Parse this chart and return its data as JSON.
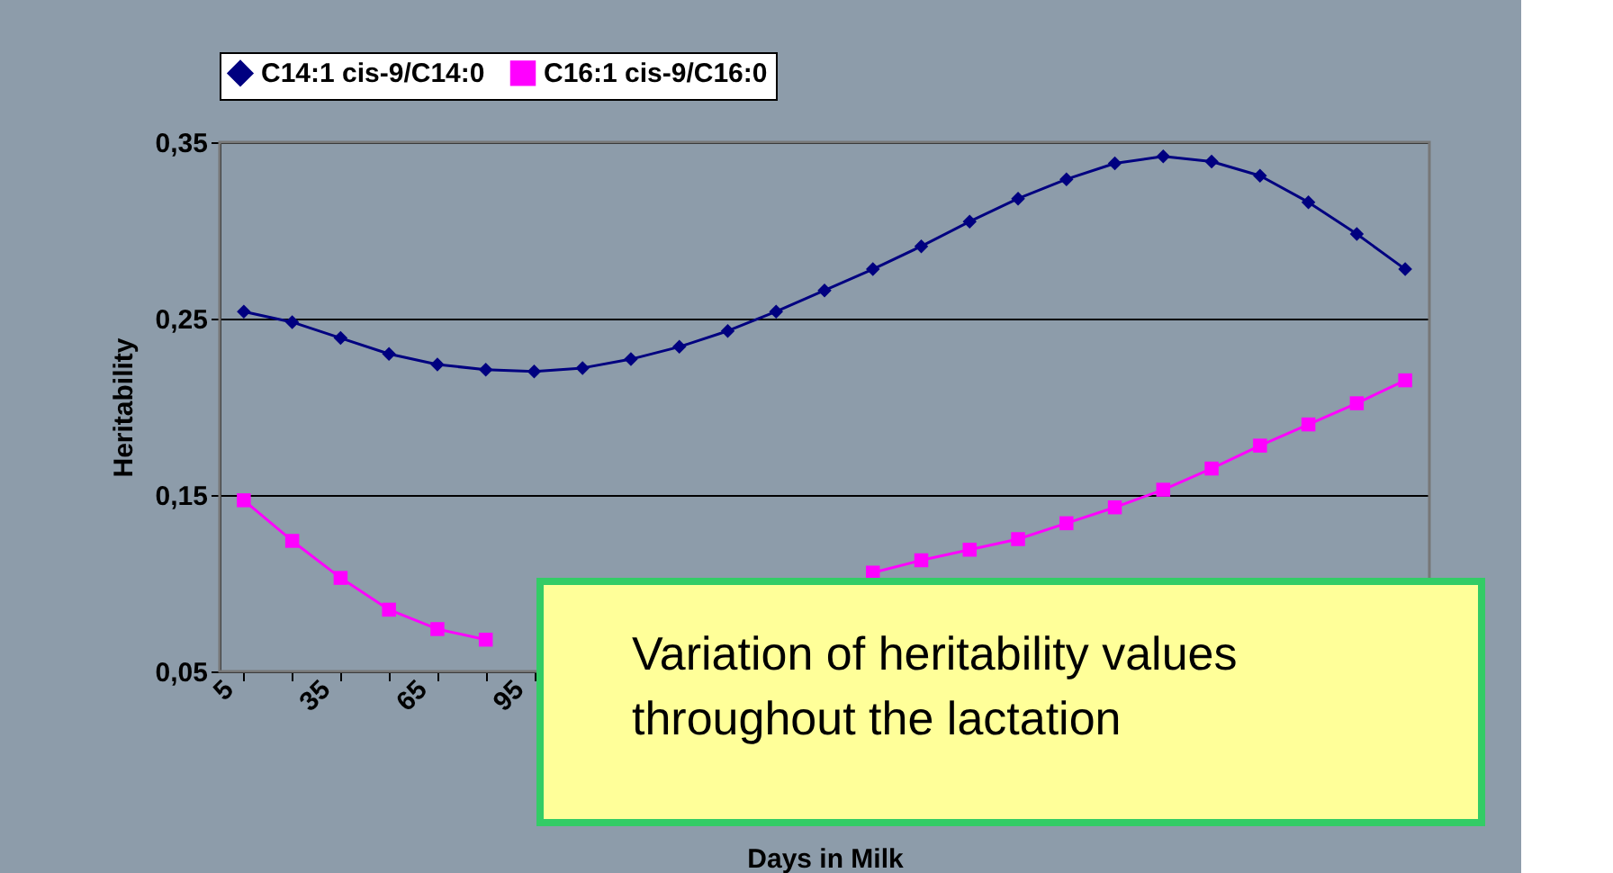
{
  "chart_data": {
    "type": "line",
    "xlabel": "Days in Milk",
    "ylabel": "Heritability",
    "categories": [
      "5",
      null,
      "35",
      null,
      "65",
      null,
      "95",
      null,
      null,
      null,
      null,
      null,
      null,
      null,
      null,
      null,
      null,
      null,
      null,
      null,
      null,
      null,
      null,
      null,
      null
    ],
    "series": [
      {
        "name": "C14:1 cis-9/C14:0",
        "color": "#000080",
        "marker": "diamond",
        "values": [
          0.254,
          0.248,
          0.239,
          0.23,
          0.224,
          0.221,
          0.22,
          0.222,
          0.227,
          0.234,
          0.243,
          0.254,
          0.266,
          0.278,
          0.291,
          0.305,
          0.318,
          0.329,
          0.338,
          0.342,
          0.339,
          0.331,
          0.316,
          0.298,
          0.278
        ]
      },
      {
        "name": "C16:1 cis-9/C16:0",
        "color": "#ff00ff",
        "marker": "square",
        "values": [
          0.147,
          0.124,
          0.103,
          0.085,
          0.074,
          0.068,
          null,
          null,
          null,
          null,
          null,
          null,
          null,
          0.106,
          0.113,
          0.119,
          0.125,
          0.134,
          0.143,
          0.153,
          0.165,
          0.178,
          0.19,
          0.202,
          0.215
        ]
      }
    ],
    "ylim": [
      0.05,
      0.35
    ],
    "yticks": [
      {
        "value": 0.05,
        "label": "0,05"
      },
      {
        "value": 0.15,
        "label": "0,15"
      },
      {
        "value": 0.25,
        "label": "0,25"
      },
      {
        "value": 0.35,
        "label": "0,35"
      }
    ],
    "grid": "y",
    "legend": "top",
    "line_style": "solid",
    "annotations": [
      "Variation of heritability values\nthroughout the lactation"
    ]
  }
}
